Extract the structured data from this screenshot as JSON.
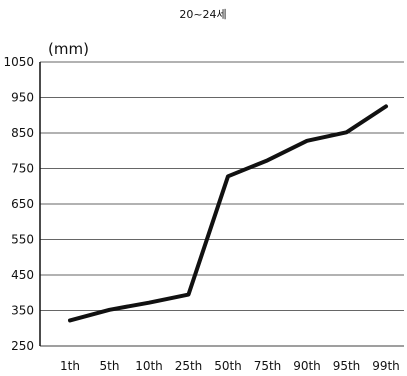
{
  "chart_data": {
    "type": "line",
    "title": "20~24세",
    "ylabel": "(mm)",
    "xlabel": "",
    "categories": [
      "1th",
      "5th",
      "10th",
      "25th",
      "50th",
      "75th",
      "90th",
      "95th",
      "99th"
    ],
    "series": [
      {
        "values": [
          322,
          352,
          372,
          395,
          728,
          773,
          828,
          852,
          925
        ]
      }
    ],
    "ylim": [
      250,
      1050
    ],
    "yticks": [
      250,
      350,
      450,
      550,
      650,
      750,
      850,
      950,
      1050
    ],
    "grid": true,
    "legend": "none",
    "colors": {
      "line": "#111111",
      "grid": "#666666",
      "text": "#111111"
    }
  }
}
